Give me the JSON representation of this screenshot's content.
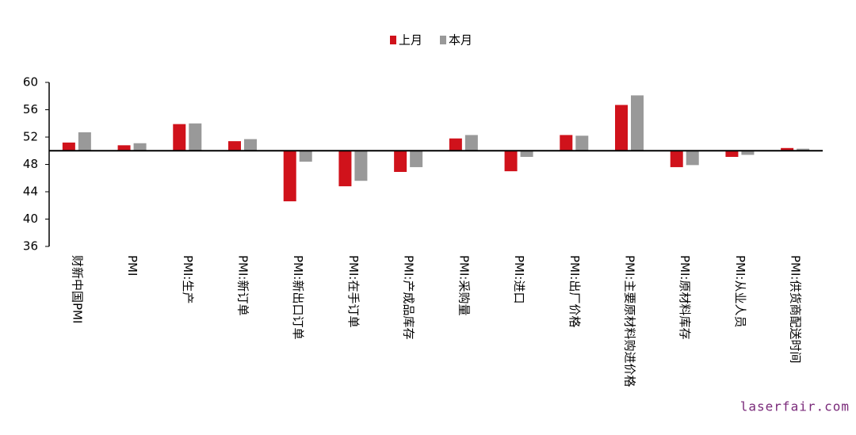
{
  "chart_data": {
    "type": "bar",
    "categories": [
      "财新中国PMI",
      "PMI",
      "PMI:生产",
      "PMI:新订单",
      "PMI:新出口订单",
      "PMI:在手订单",
      "PMI:产成品库存",
      "PMI:采购量",
      "PMI:进口",
      "PMI:出厂价格",
      "PMI:主要原材料购进价格",
      "PMI:原材料库存",
      "PMI:从业人员",
      "PMI:供货商配送时间"
    ],
    "series": [
      {
        "name": "上月",
        "color": "#d0121b",
        "values": [
          51.2,
          50.8,
          53.9,
          51.4,
          42.6,
          44.8,
          46.9,
          51.8,
          47.0,
          52.3,
          56.7,
          47.6,
          49.1,
          50.4
        ]
      },
      {
        "name": "本月",
        "color": "#999999",
        "values": [
          52.7,
          51.1,
          54.0,
          51.7,
          48.4,
          45.6,
          47.6,
          52.3,
          49.1,
          52.2,
          58.1,
          47.9,
          49.4,
          50.3
        ]
      }
    ],
    "ylim": [
      36,
      60
    ],
    "yticks": [
      36,
      40,
      44,
      48,
      52,
      56,
      60
    ],
    "x_axis_at": 50,
    "legend": "top",
    "watermark": "laserfair.com"
  }
}
